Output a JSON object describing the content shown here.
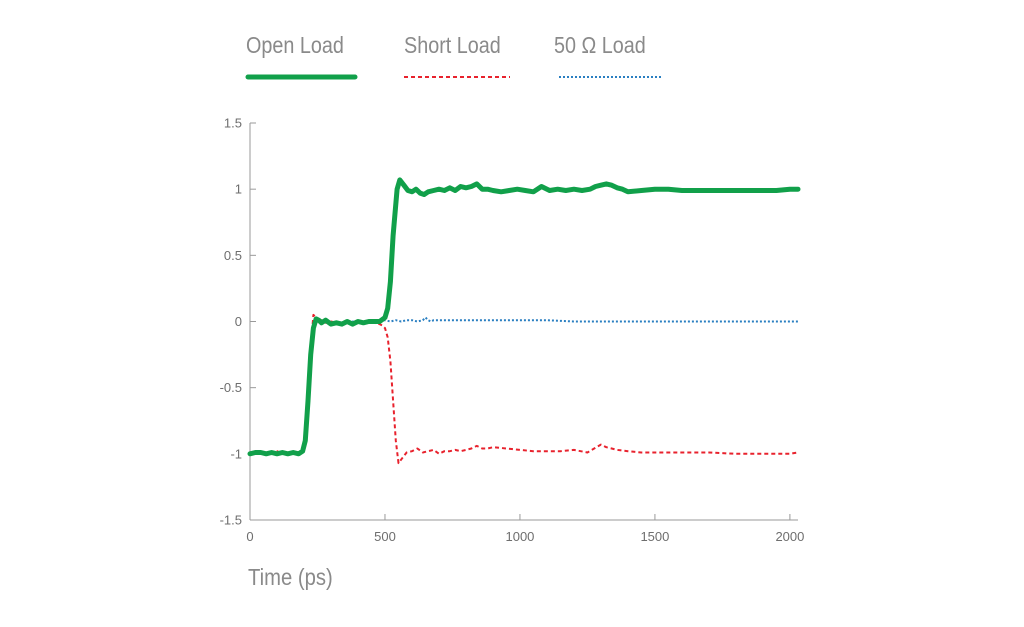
{
  "chart_data": {
    "type": "line",
    "title": "",
    "xlabel": "Time (ps)",
    "ylabel": "",
    "xlim": [
      0,
      2030
    ],
    "ylim": [
      -1.5,
      1.5
    ],
    "xticks": [
      0,
      500,
      1000,
      1500,
      2000
    ],
    "xtick_labels": [
      "0",
      "500",
      "1000",
      "1500",
      "2000"
    ],
    "yticks": [
      1.5,
      1,
      0.5,
      0,
      -0.5,
      -1,
      -1.5
    ],
    "ytick_labels": [
      "1.5",
      "1",
      "0.5",
      "0",
      "-0.5",
      "-1",
      "-1.5"
    ],
    "grid": false,
    "legend": "top",
    "series": [
      {
        "name": "Open Load",
        "color": "#11a04a",
        "style": "solid",
        "x": [
          0,
          20,
          40,
          60,
          80,
          100,
          120,
          140,
          160,
          180,
          195,
          205,
          215,
          225,
          235,
          245,
          255,
          265,
          280,
          300,
          320,
          340,
          360,
          380,
          400,
          420,
          440,
          460,
          480,
          500,
          510,
          520,
          530,
          545,
          555,
          570,
          585,
          600,
          615,
          630,
          645,
          660,
          680,
          700,
          720,
          740,
          760,
          780,
          800,
          820,
          840,
          860,
          880,
          900,
          930,
          960,
          990,
          1020,
          1050,
          1080,
          1110,
          1140,
          1170,
          1200,
          1230,
          1260,
          1280,
          1300,
          1320,
          1340,
          1360,
          1380,
          1400,
          1450,
          1500,
          1550,
          1600,
          1650,
          1700,
          1750,
          1800,
          1850,
          1900,
          1950,
          2000,
          2030
        ],
        "y": [
          -1.0,
          -0.99,
          -0.99,
          -1.0,
          -0.99,
          -1.0,
          -0.99,
          -1.0,
          -0.99,
          -1.0,
          -0.98,
          -0.9,
          -0.6,
          -0.25,
          -0.05,
          0.02,
          0.01,
          -0.01,
          0.01,
          -0.02,
          -0.01,
          -0.02,
          0.0,
          -0.02,
          0.0,
          -0.01,
          0.0,
          0.0,
          0.0,
          0.03,
          0.1,
          0.3,
          0.65,
          1.0,
          1.07,
          1.03,
          0.99,
          0.98,
          1.0,
          0.97,
          0.96,
          0.98,
          0.99,
          1.0,
          0.99,
          1.01,
          0.99,
          1.02,
          1.01,
          1.02,
          1.04,
          1.0,
          1.0,
          0.99,
          0.98,
          0.99,
          1.0,
          0.99,
          0.98,
          1.02,
          0.99,
          1.0,
          0.99,
          1.0,
          0.99,
          1.0,
          1.02,
          1.03,
          1.04,
          1.03,
          1.01,
          1.0,
          0.98,
          0.99,
          1.0,
          1.0,
          0.99,
          0.99,
          0.99,
          0.99,
          0.99,
          0.99,
          0.99,
          0.99,
          1.0,
          1.0
        ]
      },
      {
        "name": "Short Load",
        "color": "#e8222d",
        "style": "dashed",
        "x": [
          0,
          20,
          40,
          60,
          80,
          100,
          120,
          140,
          160,
          180,
          195,
          205,
          215,
          225,
          235,
          245,
          255,
          265,
          280,
          300,
          320,
          340,
          360,
          380,
          400,
          420,
          440,
          460,
          480,
          490,
          500,
          510,
          520,
          530,
          540,
          550,
          565,
          580,
          600,
          620,
          640,
          660,
          680,
          700,
          720,
          740,
          760,
          780,
          800,
          820,
          840,
          860,
          880,
          900,
          950,
          1000,
          1050,
          1100,
          1150,
          1200,
          1250,
          1300,
          1320,
          1340,
          1360,
          1400,
          1450,
          1500,
          1600,
          1700,
          1800,
          1900,
          1950,
          2000,
          2030
        ],
        "y": [
          -1.0,
          -0.99,
          -0.98,
          -1.0,
          -0.99,
          -0.98,
          -1.0,
          -0.99,
          -1.0,
          -0.99,
          -0.97,
          -0.85,
          -0.55,
          -0.2,
          0.05,
          0.03,
          -0.02,
          0.01,
          -0.01,
          0.0,
          -0.01,
          -0.02,
          0.0,
          -0.01,
          -0.01,
          0.0,
          -0.01,
          -0.01,
          -0.02,
          -0.03,
          -0.05,
          -0.12,
          -0.3,
          -0.6,
          -0.9,
          -1.07,
          -1.03,
          -0.99,
          -0.98,
          -0.96,
          -0.99,
          -0.98,
          -0.97,
          -1.0,
          -0.98,
          -0.98,
          -0.97,
          -0.98,
          -0.97,
          -0.96,
          -0.94,
          -0.96,
          -0.96,
          -0.95,
          -0.96,
          -0.97,
          -0.98,
          -0.98,
          -0.98,
          -0.97,
          -0.99,
          -0.93,
          -0.95,
          -0.96,
          -0.97,
          -0.98,
          -0.99,
          -0.99,
          -0.99,
          -0.99,
          -1.0,
          -1.0,
          -1.0,
          -1.0,
          -0.99
        ]
      },
      {
        "name": "50 Ω Load",
        "color": "#2a7fc1",
        "style": "dotted",
        "x": [
          0,
          20,
          40,
          60,
          80,
          100,
          120,
          140,
          160,
          180,
          195,
          205,
          215,
          225,
          235,
          245,
          255,
          265,
          280,
          300,
          320,
          340,
          360,
          380,
          400,
          420,
          440,
          460,
          480,
          500,
          520,
          540,
          560,
          580,
          600,
          620,
          640,
          650,
          660,
          670,
          680,
          700,
          750,
          800,
          900,
          1000,
          1100,
          1200,
          1300,
          1400,
          1500,
          1600,
          1700,
          1800,
          1900,
          2000,
          2030
        ],
        "y": [
          -1.0,
          -1.0,
          -0.99,
          -1.0,
          -0.99,
          -1.0,
          -0.99,
          -1.0,
          -0.99,
          -1.0,
          -0.98,
          -0.88,
          -0.58,
          -0.22,
          -0.03,
          0.01,
          0.0,
          -0.01,
          0.0,
          -0.01,
          -0.01,
          -0.01,
          0.0,
          0.0,
          -0.01,
          0.0,
          0.0,
          0.01,
          0.01,
          0.01,
          0.0,
          0.01,
          0.0,
          0.01,
          0.01,
          0.0,
          0.01,
          0.03,
          0.01,
          0.0,
          0.01,
          0.01,
          0.01,
          0.01,
          0.01,
          0.01,
          0.01,
          0.0,
          0.0,
          0.0,
          0.0,
          0.0,
          0.0,
          0.0,
          0.0,
          0.0,
          0.0
        ]
      }
    ]
  }
}
